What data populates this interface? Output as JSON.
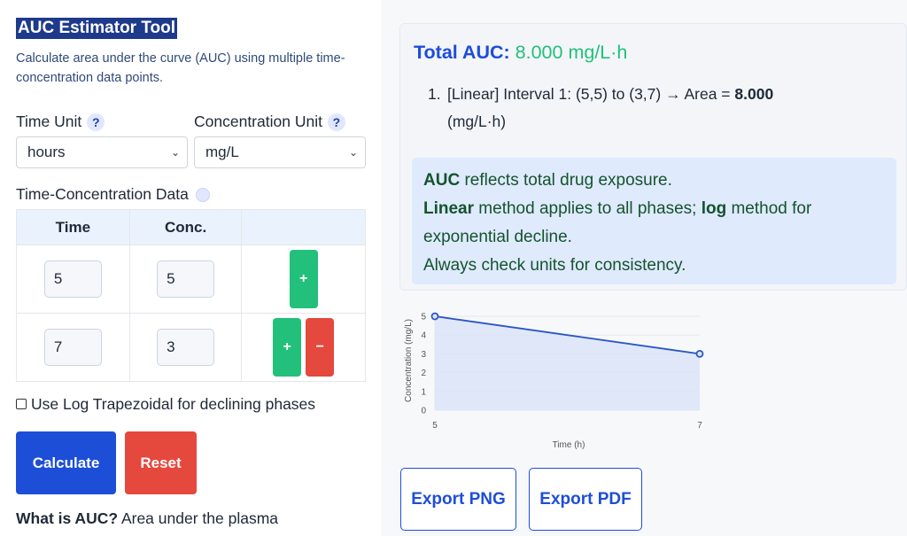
{
  "app": {
    "title": "AUC Estimator Tool",
    "subtitle": "Calculate area under the curve (AUC) using multiple time-concentration data points."
  },
  "units": {
    "time_label": "Time Unit",
    "time_value": "hours",
    "conc_label": "Concentration Unit",
    "conc_value": "mg/L",
    "help_glyph": "?"
  },
  "data_table": {
    "label": "Time-Concentration Data",
    "headers": [
      "Time",
      "Conc.",
      ""
    ],
    "rows": [
      {
        "time": "5",
        "conc": "5"
      },
      {
        "time": "7",
        "conc": "3"
      }
    ],
    "add_label": "+",
    "remove_label": "−"
  },
  "options": {
    "log_trapezoidal_label": "Use Log Trapezoidal for declining phases",
    "log_trapezoidal_checked": false
  },
  "actions": {
    "calculate": "Calculate",
    "reset": "Reset"
  },
  "about": {
    "question": "What is AUC?",
    "answer_start": "Area under the plasma"
  },
  "result": {
    "total_label": "Total AUC:",
    "total_value": "8.000 mg/L·h",
    "intervals": [
      {
        "text": "[Linear] Interval 1: (5,5) to (3,7) → Area = ",
        "area": "8.000",
        "unit": "(mg/L·h)"
      }
    ]
  },
  "info": {
    "line1_bold": "AUC",
    "line1_rest": " reflects total drug exposure.",
    "line2_bold1": "Linear",
    "line2_mid": " method applies to all phases; ",
    "line2_bold2": "log",
    "line2_rest": " method for exponential decline.",
    "line3": "Always check units for consistency."
  },
  "chart_data": {
    "type": "area",
    "x": [
      5,
      7
    ],
    "series": [
      {
        "values": [
          5,
          3
        ]
      }
    ],
    "xlabel": "Time (h)",
    "ylabel": "Concentration (mg/L)",
    "xlim": [
      5,
      7
    ],
    "ylim": [
      0,
      5
    ],
    "yticks": [
      0,
      1,
      2,
      3,
      4,
      5
    ],
    "xticks": [
      5,
      7
    ],
    "grid": true,
    "line_color": "#2b55c4",
    "fill_color": "#dbe4f8"
  },
  "export": {
    "png": "Export PNG",
    "pdf": "Export PDF"
  }
}
